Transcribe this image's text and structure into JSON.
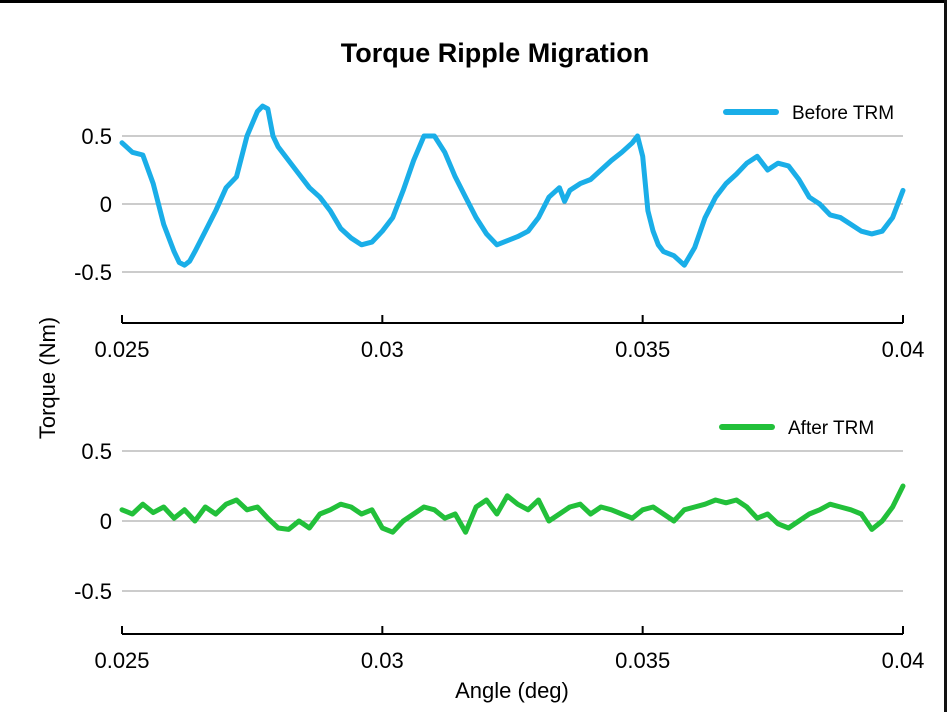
{
  "chart_data": {
    "type": "line",
    "title": "Torque Ripple Migration",
    "ylabel": "Torque (Nm)",
    "xlabel": "Angle (deg)",
    "panels": [
      {
        "series": {
          "name": "Before TRM",
          "color": "#1AAEE8",
          "x": [
            0.025,
            0.0252,
            0.0254,
            0.0256,
            0.0258,
            0.026,
            0.0261,
            0.0262,
            0.0263,
            0.0264,
            0.0266,
            0.0268,
            0.027,
            0.0272,
            0.0274,
            0.0276,
            0.0277,
            0.0278,
            0.0279,
            0.028,
            0.0282,
            0.0284,
            0.0286,
            0.0288,
            0.029,
            0.0292,
            0.0294,
            0.0296,
            0.0298,
            0.03,
            0.0302,
            0.0304,
            0.0306,
            0.0308,
            0.031,
            0.0312,
            0.0314,
            0.0316,
            0.0318,
            0.032,
            0.0322,
            0.0324,
            0.0326,
            0.0328,
            0.033,
            0.0332,
            0.0334,
            0.0335,
            0.0336,
            0.0338,
            0.034,
            0.0342,
            0.0344,
            0.0346,
            0.0348,
            0.0349,
            0.035,
            0.0351,
            0.0352,
            0.0353,
            0.0354,
            0.0356,
            0.0358,
            0.036,
            0.0362,
            0.0364,
            0.0366,
            0.0368,
            0.037,
            0.0372,
            0.0374,
            0.0376,
            0.0378,
            0.038,
            0.0382,
            0.0384,
            0.0386,
            0.0388,
            0.039,
            0.0392,
            0.0394,
            0.0396,
            0.0398,
            0.04
          ],
          "values": [
            0.45,
            0.38,
            0.36,
            0.15,
            -0.15,
            -0.35,
            -0.43,
            -0.45,
            -0.42,
            -0.35,
            -0.2,
            -0.05,
            0.12,
            0.2,
            0.5,
            0.68,
            0.72,
            0.7,
            0.5,
            0.42,
            0.32,
            0.22,
            0.12,
            0.05,
            -0.05,
            -0.18,
            -0.25,
            -0.3,
            -0.28,
            -0.2,
            -0.1,
            0.1,
            0.32,
            0.5,
            0.5,
            0.38,
            0.2,
            0.05,
            -0.1,
            -0.22,
            -0.3,
            -0.27,
            -0.24,
            -0.2,
            -0.1,
            0.05,
            0.12,
            0.02,
            0.1,
            0.15,
            0.18,
            0.25,
            0.32,
            0.38,
            0.45,
            0.5,
            0.35,
            -0.05,
            -0.2,
            -0.3,
            -0.35,
            -0.38,
            -0.45,
            -0.32,
            -0.1,
            0.05,
            0.15,
            0.22,
            0.3,
            0.35,
            0.25,
            0.3,
            0.28,
            0.18,
            0.05,
            0.0,
            -0.08,
            -0.1,
            -0.15,
            -0.2,
            -0.22,
            -0.2,
            -0.1,
            0.1
          ]
        },
        "yticks": [
          0.5,
          0,
          -0.5
        ],
        "ytick_labels": [
          "0.5",
          "0",
          "-0.5"
        ],
        "xticks": [
          0.025,
          0.03,
          0.035,
          0.04
        ],
        "xtick_labels": [
          "0.025",
          "0.03",
          "0.035",
          "0.04"
        ],
        "xlim": [
          0.025,
          0.04
        ],
        "ylim": [
          -0.85,
          0.85
        ]
      },
      {
        "series": {
          "name": "After TRM",
          "color": "#22C03A",
          "x": [
            0.025,
            0.0252,
            0.0254,
            0.0256,
            0.0258,
            0.026,
            0.0262,
            0.0264,
            0.0266,
            0.0268,
            0.027,
            0.0272,
            0.0274,
            0.0276,
            0.0278,
            0.028,
            0.0282,
            0.0284,
            0.0286,
            0.0288,
            0.029,
            0.0292,
            0.0294,
            0.0296,
            0.0298,
            0.03,
            0.0302,
            0.0304,
            0.0306,
            0.0308,
            0.031,
            0.0312,
            0.0314,
            0.0316,
            0.0318,
            0.032,
            0.0322,
            0.0324,
            0.0326,
            0.0328,
            0.033,
            0.0332,
            0.0334,
            0.0336,
            0.0338,
            0.034,
            0.0342,
            0.0344,
            0.0346,
            0.0348,
            0.035,
            0.0352,
            0.0354,
            0.0356,
            0.0358,
            0.036,
            0.0362,
            0.0364,
            0.0366,
            0.0368,
            0.037,
            0.0372,
            0.0374,
            0.0376,
            0.0378,
            0.038,
            0.0382,
            0.0384,
            0.0386,
            0.0388,
            0.039,
            0.0392,
            0.0394,
            0.0396,
            0.0398,
            0.04
          ],
          "values": [
            0.08,
            0.05,
            0.12,
            0.06,
            0.1,
            0.02,
            0.08,
            0.0,
            0.1,
            0.05,
            0.12,
            0.15,
            0.08,
            0.1,
            0.02,
            -0.05,
            -0.06,
            0.0,
            -0.05,
            0.05,
            0.08,
            0.12,
            0.1,
            0.05,
            0.08,
            -0.05,
            -0.08,
            0.0,
            0.05,
            0.1,
            0.08,
            0.02,
            0.05,
            -0.08,
            0.1,
            0.15,
            0.05,
            0.18,
            0.12,
            0.08,
            0.15,
            0.0,
            0.05,
            0.1,
            0.12,
            0.05,
            0.1,
            0.08,
            0.05,
            0.02,
            0.08,
            0.1,
            0.05,
            0.0,
            0.08,
            0.1,
            0.12,
            0.15,
            0.13,
            0.15,
            0.1,
            0.02,
            0.05,
            -0.02,
            -0.05,
            0.0,
            0.05,
            0.08,
            0.12,
            0.1,
            0.08,
            0.05,
            -0.06,
            0.0,
            0.1,
            0.25
          ]
        },
        "yticks": [
          0.5,
          0,
          -0.5
        ],
        "ytick_labels": [
          "0.5",
          "0",
          "-0.5"
        ],
        "xticks": [
          0.025,
          0.03,
          0.035,
          0.04
        ],
        "xtick_labels": [
          "0.025",
          "0.03",
          "0.035",
          "0.04"
        ],
        "xlim": [
          0.025,
          0.04
        ],
        "ylim": [
          -0.85,
          0.85
        ]
      }
    ],
    "grid": "horizontal",
    "legend_position": "top-right"
  }
}
